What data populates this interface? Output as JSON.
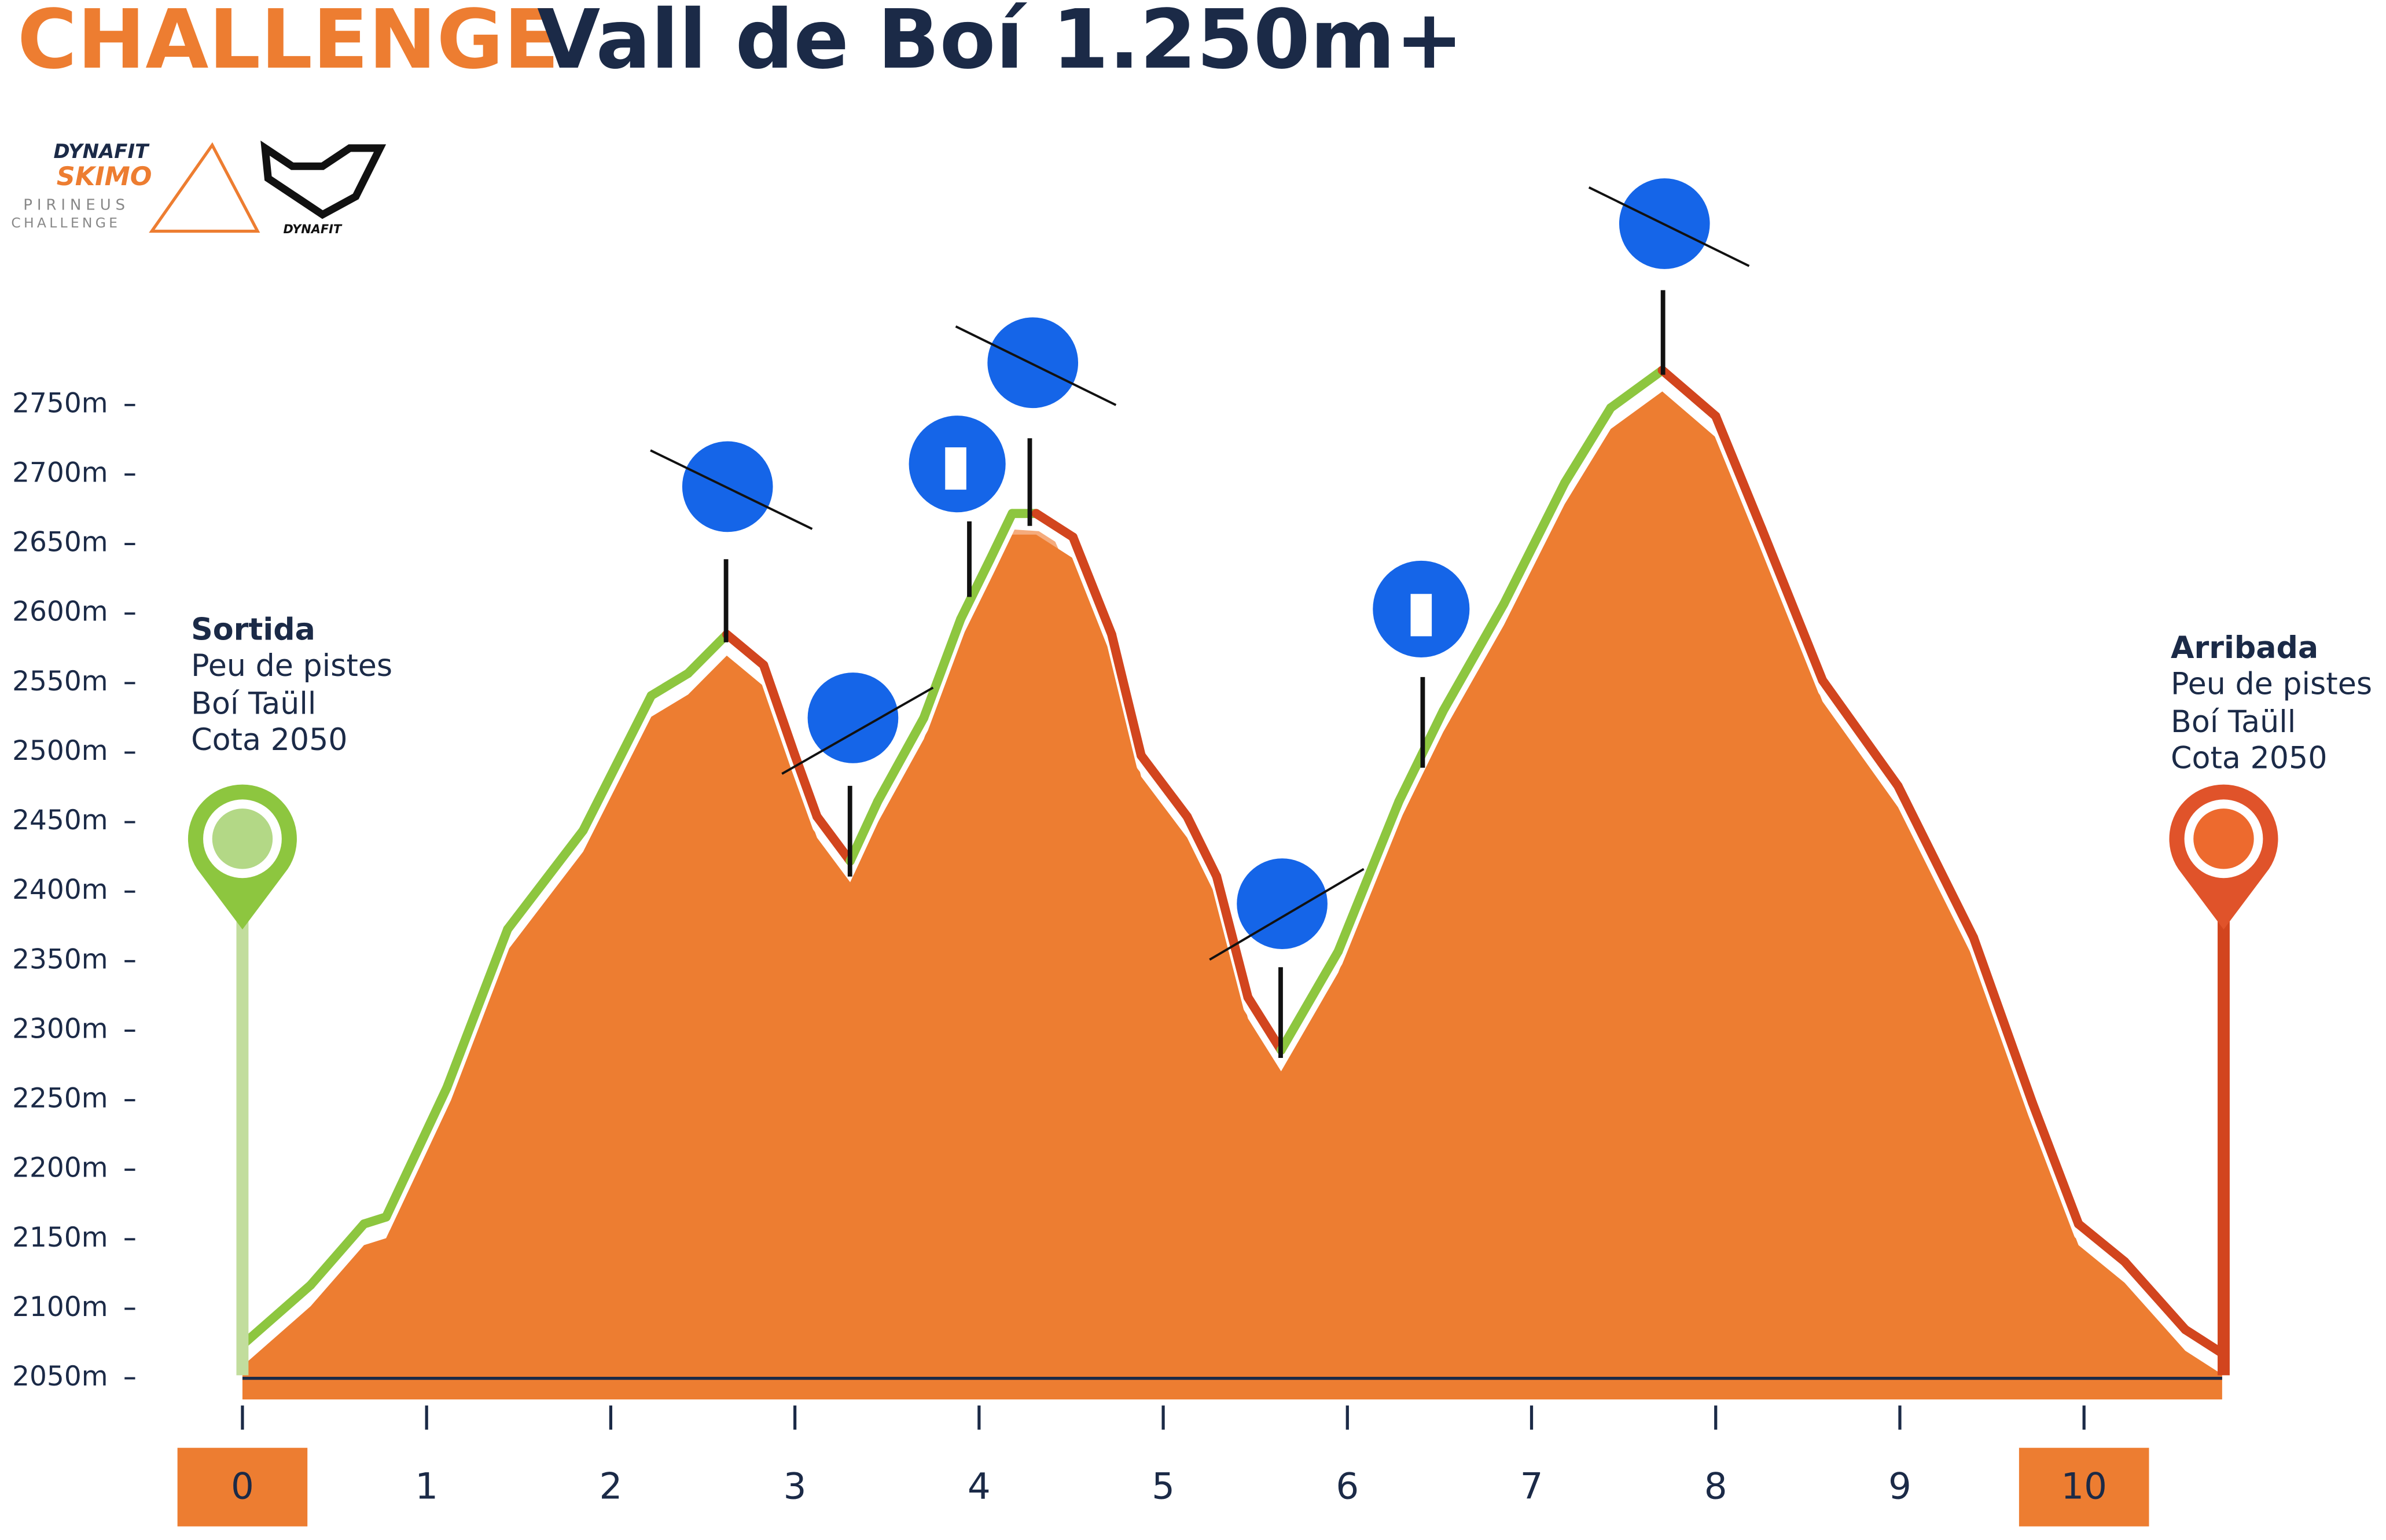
{
  "chart_data": {
    "type": "area",
    "title": "CHALLENGE",
    "subtitle": "Vall de Boí 1.250m+",
    "logo": {
      "brand": "DYNAFIT",
      "name": "SKIMO",
      "region": "PIRINEUS",
      "event": "CHALLENGE",
      "brand2": "DYNAFIT"
    },
    "start": {
      "title": "Sortida",
      "lines": [
        "Peu de pistes",
        "Boí Taüll",
        "Cota 2050"
      ]
    },
    "finish": {
      "title": "Arribada",
      "lines": [
        "Peu de pistes",
        "Boí Taüll",
        "Cota 2050"
      ]
    },
    "x": [
      0,
      0.37,
      0.66,
      0.78,
      1.11,
      1.44,
      1.85,
      2.22,
      2.42,
      2.63,
      2.83,
      3.0,
      3.12,
      3.3,
      3.45,
      3.7,
      3.9,
      4.06,
      4.18,
      4.31,
      4.51,
      4.72,
      4.88,
      5.13,
      5.29,
      5.46,
      5.64,
      5.95,
      6.28,
      6.52,
      6.85,
      7.18,
      7.43,
      7.71,
      8.0,
      8.25,
      8.58,
      8.99,
      9.4,
      9.72,
      9.97,
      10.22,
      10.55,
      10.75
    ],
    "values": [
      2074,
      2117,
      2161,
      2166,
      2259,
      2373,
      2444,
      2541,
      2557,
      2585,
      2563,
      2498,
      2454,
      2422,
      2465,
      2525,
      2596,
      2639,
      2672,
      2672,
      2655,
      2585,
      2498,
      2454,
      2411,
      2324,
      2286,
      2357,
      2465,
      2530,
      2607,
      2694,
      2748,
      2775,
      2742,
      2661,
      2552,
      2476,
      2367,
      2248,
      2161,
      2134,
      2085,
      2068
    ],
    "color": "#ed7d31",
    "line_colors": {
      "up": "#8dc63f",
      "down": "#d2451e"
    },
    "xlim": [
      0,
      10.75
    ],
    "xticks": [
      0,
      1,
      2,
      3,
      4,
      5,
      6,
      7,
      8,
      9,
      10
    ],
    "ylim": [
      2050,
      2800
    ],
    "yticks": [
      {
        "value": 2050,
        "label": "2050m"
      },
      {
        "value": 2100,
        "label": "2100m"
      },
      {
        "value": 2150,
        "label": "2150m"
      },
      {
        "value": 2200,
        "label": "2200m"
      },
      {
        "value": 2250,
        "label": "2250m"
      },
      {
        "value": 2300,
        "label": "2300m"
      },
      {
        "value": 2350,
        "label": "2350m"
      },
      {
        "value": 2400,
        "label": "2400m"
      },
      {
        "value": 2450,
        "label": "2450m"
      },
      {
        "value": 2500,
        "label": "2500m"
      },
      {
        "value": 2550,
        "label": "2550m"
      },
      {
        "value": 2600,
        "label": "2600m"
      },
      {
        "value": 2650,
        "label": "2650m"
      },
      {
        "value": 2700,
        "label": "2700m"
      },
      {
        "value": 2750,
        "label": "2750m"
      }
    ]
  }
}
